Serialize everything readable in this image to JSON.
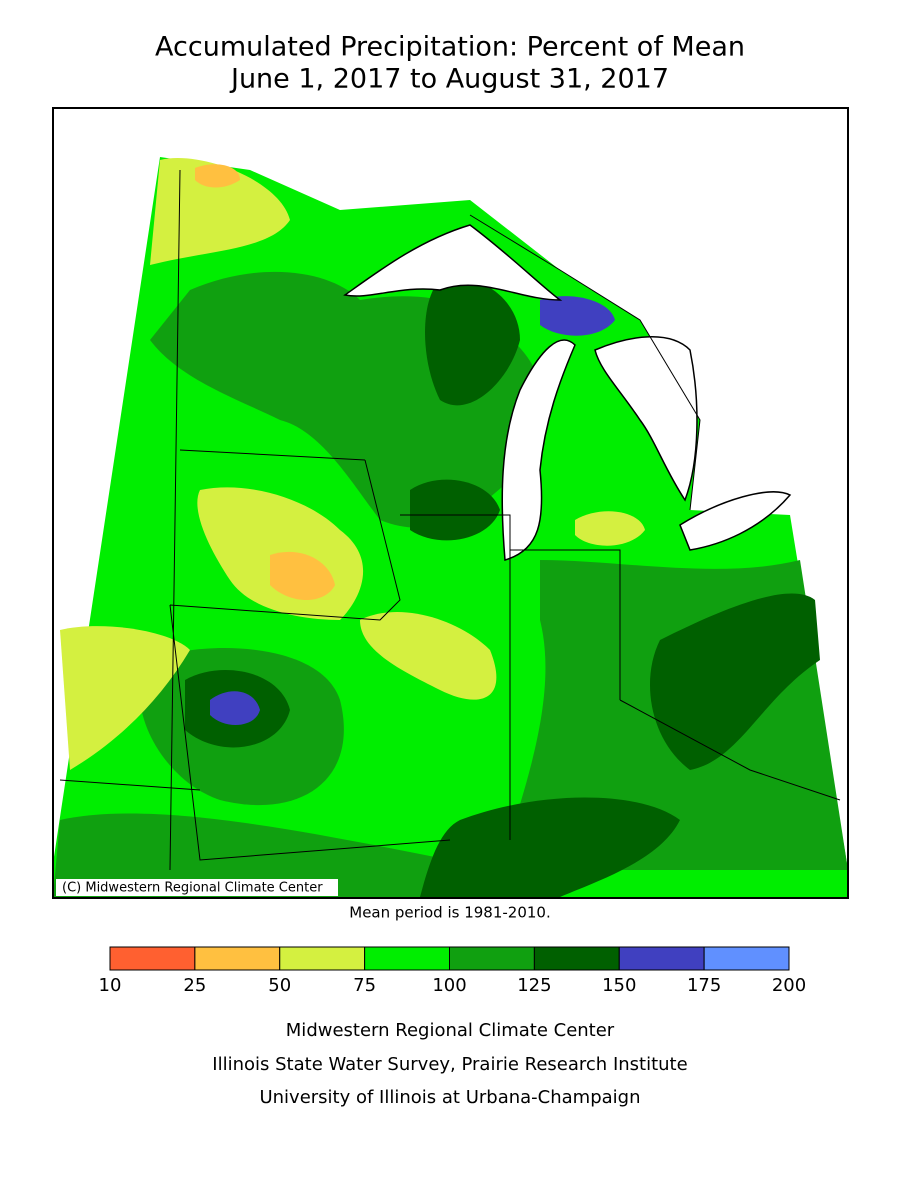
{
  "title": [
    "Accumulated Precipitation: Percent of Mean",
    "June 1, 2017 to August 31, 2017"
  ],
  "copyright": "(C) Midwestern Regional Climate Center",
  "mean_period": "Mean period is 1981-2010.",
  "legend": {
    "ticks": [
      10,
      25,
      50,
      75,
      100,
      125,
      150,
      175,
      200
    ],
    "colors": [
      "#ff6030",
      "#ffc040",
      "#d4f040",
      "#00ee00",
      "#10a010",
      "#006000",
      "#4040c0",
      "#6090ff"
    ]
  },
  "footer": [
    "Midwestern Regional Climate Center",
    "Illinois State Water Survey, Prairie Research Institute",
    "University of Illinois at Urbana-Champaign"
  ]
}
